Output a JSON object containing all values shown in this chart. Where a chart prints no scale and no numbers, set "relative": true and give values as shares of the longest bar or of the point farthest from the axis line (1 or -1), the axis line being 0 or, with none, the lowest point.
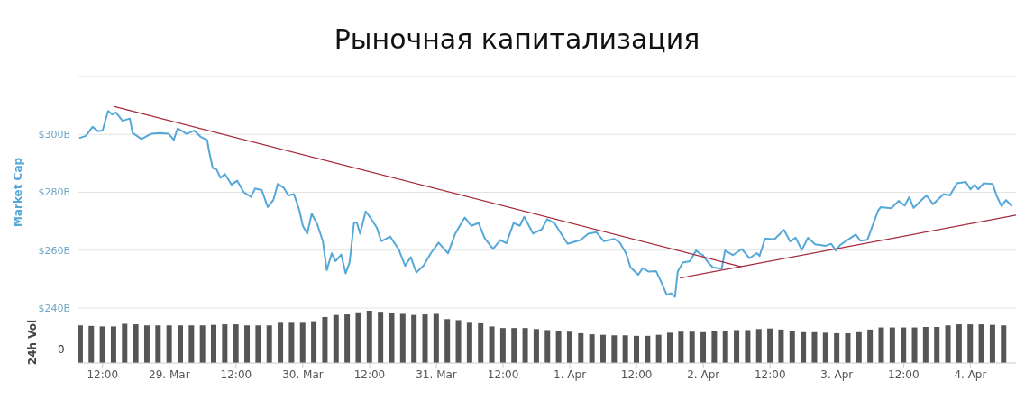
{
  "chart_data": [
    {
      "type": "line",
      "title": "Рыночная капитализация",
      "ylabel": "Market Cap",
      "xlim": [
        "--03-28T07:30",
        "--04-04T08:12"
      ],
      "ylim": [
        240,
        320
      ],
      "yticks": [
        {
          "value": 240,
          "label": "$240B"
        },
        {
          "value": 260,
          "label": "$260B"
        },
        {
          "value": 280,
          "label": "$280B"
        },
        {
          "value": 300,
          "label": "$300B"
        },
        {
          "value": 320,
          "label": null
        }
      ],
      "grid": "y",
      "marker": "none",
      "line_style": "solid",
      "tick_labels": "y",
      "series": [
        {
          "color": "#55a8d8",
          "x": [
            "--03-28T07:48",
            "--03-28T09:00",
            "--03-28T10:12",
            "--03-28T11:12",
            "--03-28T12:00",
            "--03-28T13:00",
            "--03-28T13:42",
            "--03-28T14:24",
            "--03-28T15:36",
            "--03-28T16:54",
            "--03-28T17:24",
            "--03-28T19:00",
            "--03-28T20:42",
            "--03-28T22:18",
            "--03-28T23:54",
            "--03-29T00:48",
            "--03-29T01:30",
            "--03-29T03:06",
            "--03-29T04:30",
            "--03-29T05:36",
            "--03-29T06:48",
            "--03-29T07:06",
            "--03-29T07:48",
            "--03-29T08:30",
            "--03-29T09:12",
            "--03-29T10:00",
            "--03-29T11:12",
            "--03-29T12:12",
            "--03-29T13:24",
            "--03-29T14:42",
            "--03-29T15:24",
            "--03-29T16:36",
            "--03-29T17:42",
            "--03-29T18:42",
            "--03-29T19:30",
            "--03-29T20:36",
            "--03-29T21:24",
            "--03-29T22:24",
            "--03-29T23:24",
            "--03-30T00:00",
            "--03-30T00:48",
            "--03-30T01:36",
            "--03-30T02:36",
            "--03-30T03:36",
            "--03-30T04:18",
            "--03-30T05:12",
            "--03-30T05:54",
            "--03-30T06:54",
            "--03-30T07:42",
            "--03-30T08:24",
            "--03-30T09:12",
            "--03-30T09:42",
            "--03-30T10:18",
            "--03-30T11:18",
            "--03-30T12:24",
            "--03-30T13:18",
            "--03-30T14:06",
            "--03-30T15:42",
            "--03-30T17:12",
            "--03-30T18:24",
            "--03-30T19:24",
            "--03-30T20:24",
            "--03-30T21:42",
            "--03-30T23:00",
            "--03-31T00:24",
            "--03-31T02:06",
            "--03-31T03:24",
            "--03-31T05:06",
            "--03-31T06:18",
            "--03-31T07:36",
            "--03-31T08:42",
            "--03-31T10:12",
            "--03-31T11:30",
            "--03-31T12:36",
            "--03-31T13:54",
            "--03-31T15:00",
            "--03-31T15:48",
            "--03-31T17:24",
            "--03-31T19:00",
            "--03-31T19:54",
            "--03-31T21:12",
            "--03-31T23:36",
            "--04-01T02:00",
            "--04-01T03:18",
            "--04-01T04:48",
            "--04-01T06:06",
            "--04-01T08:00",
            "--04-01T09:00",
            "--04-01T10:06",
            "--04-01T10:54",
            "--04-01T12:18",
            "--04-01T13:06",
            "--04-01T14:12",
            "--04-01T15:30",
            "--04-01T16:36",
            "--04-01T17:24",
            "--04-01T18:12",
            "--04-01T18:54",
            "--04-01T19:24",
            "--04-01T20:18",
            "--04-01T21:36",
            "--04-01T22:42",
            "--04-01T23:18",
            "--04-01T23:54",
            "--04-02T00:54",
            "--04-02T01:42",
            "--04-02T03:18",
            "--04-02T03:54",
            "--04-02T05:18",
            "--04-02T06:54",
            "--04-02T08:18",
            "--04-02T09:36",
            "--04-02T10:06",
            "--04-02T11:06",
            "--04-02T12:48",
            "--04-02T14:30",
            "--04-02T15:36",
            "--04-02T16:36",
            "--04-02T17:42",
            "--04-02T18:48",
            "--04-02T20:06",
            "--04-02T22:00",
            "--04-02T23:00",
            "--04-02T23:48",
            "--04-03T00:36",
            "--04-03T02:00",
            "--04-03T03:24",
            "--04-03T04:12",
            "--04-03T05:30",
            "--04-03T06:18",
            "--04-03T07:24",
            "--04-03T07:54",
            "--04-03T09:48",
            "--04-03T11:06",
            "--04-03T12:12",
            "--04-03T13:00",
            "--04-03T13:48",
            "--04-03T15:12",
            "--04-03T16:06",
            "--04-03T17:18",
            "--04-03T19:12",
            "--04-03T20:18",
            "--04-03T21:36",
            "--04-03T23:12",
            "--04-04T00:00",
            "--04-04T00:48",
            "--04-04T01:24",
            "--04-04T02:24",
            "--04-04T04:00",
            "--04-04T04:42",
            "--04-04T05:36",
            "--04-04T06:24",
            "--04-04T07:30"
          ],
          "values": [
            298.7,
            299.5,
            302.6,
            301.1,
            301.3,
            308.1,
            306.9,
            307.6,
            304.7,
            305.5,
            300.5,
            298.4,
            300.2,
            300.5,
            300.2,
            298.1,
            302.1,
            300.2,
            301.3,
            299.2,
            298.1,
            294.7,
            288.4,
            287.9,
            285.0,
            286.3,
            282.6,
            284.0,
            280.0,
            278.4,
            281.3,
            280.8,
            274.9,
            277.3,
            282.9,
            281.5,
            278.9,
            279.4,
            273.6,
            268.4,
            265.7,
            272.6,
            268.9,
            263.1,
            253.1,
            258.9,
            256.2,
            258.5,
            252.0,
            255.7,
            269.4,
            269.6,
            265.7,
            273.4,
            270.5,
            267.8,
            263.1,
            264.7,
            260.4,
            254.6,
            257.6,
            252.3,
            254.6,
            258.9,
            262.6,
            258.9,
            265.7,
            271.3,
            268.4,
            269.4,
            264.1,
            260.4,
            263.5,
            262.4,
            269.4,
            268.4,
            271.5,
            265.7,
            267.3,
            270.7,
            269.4,
            262.2,
            263.6,
            265.7,
            266.2,
            263.1,
            263.9,
            262.6,
            258.9,
            254.1,
            251.5,
            253.8,
            252.6,
            252.8,
            248.3,
            244.6,
            245.1,
            243.9,
            252.6,
            255.7,
            256.2,
            259.9,
            258.9,
            258.3,
            255.7,
            254.1,
            253.6,
            259.9,
            258.3,
            260.4,
            257.2,
            259.0,
            258.0,
            264.0,
            263.8,
            267.0,
            263.0,
            264.3,
            260.1,
            264.3,
            262.0,
            261.5,
            262.2,
            259.9,
            261.8,
            263.6,
            265.4,
            263.3,
            263.6,
            267.8,
            273.6,
            274.9,
            274.5,
            277.0,
            275.4,
            278.3,
            274.6,
            277.3,
            278.9,
            275.9,
            279.4,
            278.9,
            283.1,
            283.6,
            281.0,
            282.6,
            281.0,
            283.1,
            282.9,
            278.9,
            275.2,
            277.3,
            275.2
          ]
        },
        {
          "color": "#a52a3a",
          "x": [
            "--03-28T14:00",
            "--04-02T06:48"
          ],
          "values": [
            309.7,
            254.3
          ]
        },
        {
          "color": "#a52a3a",
          "x": [
            "--04-01T19:48",
            "--04-04T08:12"
          ],
          "values": [
            250.4,
            272.1
          ]
        }
      ]
    },
    {
      "type": "bar",
      "ylabel": "24h Vol",
      "relative": true,
      "color": "#555555",
      "annotations": [
        "0"
      ],
      "xlim": [
        "--03-28T07:30",
        "--04-04T08:12"
      ],
      "xticks": [
        {
          "value": "--03-28T12:00",
          "label": "12:00"
        },
        {
          "value": "--03-29T00:00",
          "label": "29. Mar"
        },
        {
          "value": "--03-29T12:00",
          "label": "12:00"
        },
        {
          "value": "--03-30T00:00",
          "label": "30. Mar"
        },
        {
          "value": "--03-30T12:00",
          "label": "12:00"
        },
        {
          "value": "--03-31T00:00",
          "label": "31. Mar"
        },
        {
          "value": "--03-31T12:00",
          "label": "12:00"
        },
        {
          "value": "--04-01T00:00",
          "label": "1. Apr"
        },
        {
          "value": "--04-01T12:00",
          "label": "12:00"
        },
        {
          "value": "--04-02T00:00",
          "label": "2. Apr"
        },
        {
          "value": "--04-02T12:00",
          "label": "12:00"
        },
        {
          "value": "--04-03T00:00",
          "label": "3. Apr"
        },
        {
          "value": "--04-03T12:00",
          "label": "12:00"
        },
        {
          "value": "--04-04T00:00",
          "label": "4. Apr"
        }
      ],
      "x": [
        "--03-28T08:00",
        "--03-28T10:00",
        "--03-28T12:00",
        "--03-28T14:00",
        "--03-28T16:00",
        "--03-28T18:00",
        "--03-28T20:00",
        "--03-28T22:00",
        "--03-29T00:00",
        "--03-29T02:00",
        "--03-29T04:00",
        "--03-29T06:00",
        "--03-29T08:00",
        "--03-29T10:00",
        "--03-29T12:00",
        "--03-29T14:00",
        "--03-29T16:00",
        "--03-29T18:00",
        "--03-29T20:00",
        "--03-29T22:00",
        "--03-30T00:00",
        "--03-30T02:00",
        "--03-30T04:00",
        "--03-30T06:00",
        "--03-30T08:00",
        "--03-30T10:00",
        "--03-30T12:00",
        "--03-30T14:00",
        "--03-30T16:00",
        "--03-30T18:00",
        "--03-30T20:00",
        "--03-30T22:00",
        "--03-31T00:00",
        "--03-31T02:00",
        "--03-31T04:00",
        "--03-31T06:00",
        "--03-31T08:00",
        "--03-31T10:00",
        "--03-31T12:00",
        "--03-31T14:00",
        "--03-31T16:00",
        "--03-31T18:00",
        "--03-31T20:00",
        "--03-31T22:00",
        "--04-01T00:00",
        "--04-01T02:00",
        "--04-01T04:00",
        "--04-01T06:00",
        "--04-01T08:00",
        "--04-01T10:00",
        "--04-01T12:00",
        "--04-01T14:00",
        "--04-01T16:00",
        "--04-01T18:00",
        "--04-01T20:00",
        "--04-01T22:00",
        "--04-02T00:00",
        "--04-02T02:00",
        "--04-02T04:00",
        "--04-02T06:00",
        "--04-02T08:00",
        "--04-02T10:00",
        "--04-02T12:00",
        "--04-02T14:00",
        "--04-02T16:00",
        "--04-02T18:00",
        "--04-02T20:00",
        "--04-02T22:00",
        "--04-03T00:00",
        "--04-03T02:00",
        "--04-03T04:00",
        "--04-03T06:00",
        "--04-03T08:00",
        "--04-03T10:00",
        "--04-03T12:00",
        "--04-03T14:00",
        "--04-03T16:00",
        "--04-03T18:00",
        "--04-03T20:00",
        "--04-03T22:00",
        "--04-04T00:00",
        "--04-04T02:00",
        "--04-04T04:00",
        "--04-04T06:00"
      ],
      "values": [
        0.72,
        0.71,
        0.7,
        0.7,
        0.75,
        0.74,
        0.72,
        0.72,
        0.72,
        0.72,
        0.72,
        0.72,
        0.73,
        0.74,
        0.74,
        0.72,
        0.72,
        0.72,
        0.77,
        0.77,
        0.77,
        0.8,
        0.88,
        0.92,
        0.93,
        0.97,
        1,
        0.98,
        0.96,
        0.94,
        0.92,
        0.93,
        0.94,
        0.84,
        0.82,
        0.77,
        0.76,
        0.7,
        0.67,
        0.67,
        0.67,
        0.65,
        0.63,
        0.62,
        0.6,
        0.57,
        0.55,
        0.54,
        0.53,
        0.53,
        0.52,
        0.52,
        0.54,
        0.58,
        0.6,
        0.6,
        0.59,
        0.62,
        0.62,
        0.63,
        0.63,
        0.65,
        0.66,
        0.64,
        0.61,
        0.59,
        0.59,
        0.58,
        0.57,
        0.57,
        0.59,
        0.64,
        0.68,
        0.68,
        0.68,
        0.68,
        0.69,
        0.69,
        0.72,
        0.74,
        0.74,
        0.74,
        0.73,
        0.72
      ]
    }
  ]
}
